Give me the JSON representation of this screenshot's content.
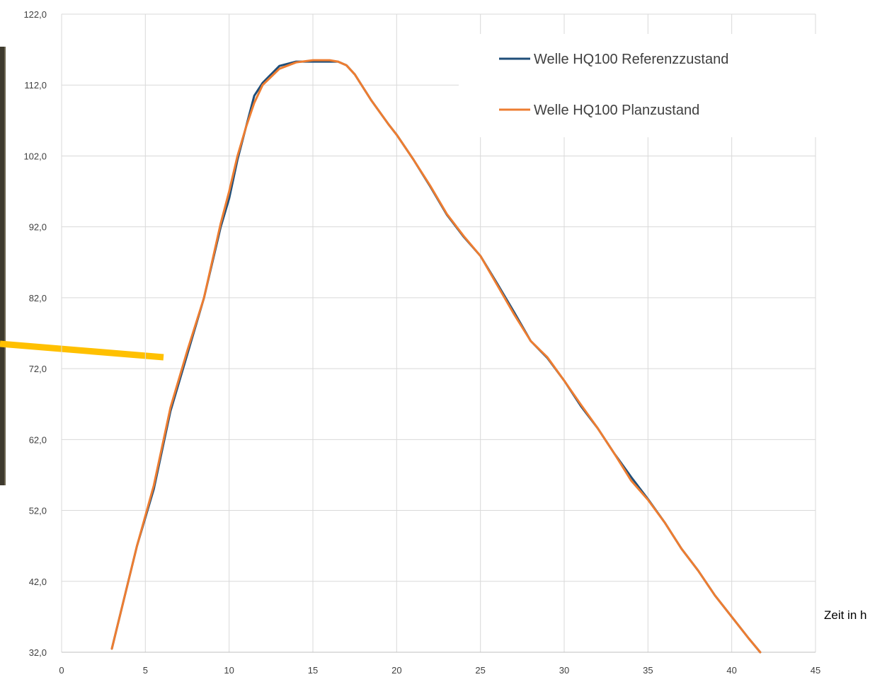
{
  "chart_data": {
    "type": "line",
    "title": "",
    "xlabel": "Zeit in h",
    "ylabel": "",
    "xlim": [
      0,
      45
    ],
    "ylim": [
      32,
      122
    ],
    "x_ticks": [
      "0",
      "5",
      "10",
      "15",
      "20",
      "25",
      "30",
      "35",
      "40",
      "45"
    ],
    "y_ticks": [
      "32,0",
      "42,0",
      "52,0",
      "62,0",
      "72,0",
      "82,0",
      "92,0",
      "102,0",
      "112,0",
      "122,0"
    ],
    "grid": true,
    "legend_position": "top-right",
    "series": [
      {
        "name": "Welle HQ100 Referenzzustand",
        "color": "#1f4e79",
        "x": [
          3.0,
          4.5,
          5.5,
          6.5,
          7.5,
          8.5,
          9.5,
          10.0,
          10.5,
          11.0,
          11.5,
          12.0,
          13.0,
          14.0,
          15.0,
          16.0,
          16.5,
          17.0,
          17.5,
          18.5,
          19.5,
          20.0,
          21.0,
          22.0,
          23.0,
          24.0,
          25.0,
          26.0,
          27.0,
          28.0,
          29.0,
          30.0,
          31.0,
          32.0,
          33.0,
          34.0,
          35.0,
          36.0,
          37.0,
          38.0,
          39.0,
          40.0,
          41.0,
          41.7
        ],
        "y": [
          32.5,
          47.0,
          55.0,
          66.0,
          74.0,
          82.0,
          92.0,
          96.0,
          101.5,
          106.0,
          110.5,
          112.3,
          114.7,
          115.3,
          115.3,
          115.3,
          115.3,
          114.8,
          113.5,
          109.8,
          106.5,
          105.0,
          101.5,
          97.7,
          93.7,
          90.6,
          87.9,
          84.0,
          80.0,
          75.9,
          73.5,
          70.3,
          66.7,
          63.6,
          60.0,
          56.7,
          53.6,
          50.3,
          46.6,
          43.5,
          40.0,
          37.0,
          34.0,
          32.0
        ]
      },
      {
        "name": "Welle HQ100 Planzustand",
        "color": "#ed7d31",
        "x": [
          3.0,
          4.5,
          5.5,
          6.5,
          7.5,
          8.5,
          9.5,
          10.0,
          10.5,
          11.0,
          11.5,
          12.0,
          13.0,
          14.0,
          15.0,
          16.0,
          16.5,
          17.0,
          17.5,
          18.5,
          19.5,
          20.0,
          21.0,
          22.0,
          23.0,
          24.0,
          25.0,
          26.0,
          27.0,
          28.0,
          29.0,
          30.0,
          31.0,
          32.0,
          33.0,
          34.0,
          35.0,
          36.0,
          37.0,
          38.0,
          39.0,
          40.0,
          41.0,
          41.7
        ],
        "y": [
          32.5,
          47.0,
          55.5,
          66.5,
          74.5,
          82.0,
          92.5,
          97.0,
          102.0,
          106.0,
          109.5,
          112.0,
          114.3,
          115.2,
          115.5,
          115.5,
          115.3,
          114.8,
          113.5,
          109.8,
          106.5,
          105.0,
          101.5,
          97.8,
          93.8,
          90.7,
          87.9,
          83.8,
          79.7,
          75.9,
          73.6,
          70.3,
          66.9,
          63.6,
          60.0,
          56.2,
          53.5,
          50.3,
          46.6,
          43.5,
          40.0,
          37.0,
          34.0,
          32.0
        ]
      }
    ]
  }
}
